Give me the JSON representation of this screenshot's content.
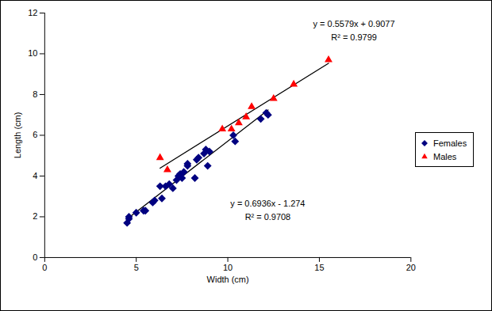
{
  "chart_data": {
    "type": "scatter",
    "xlabel": "Width (cm)",
    "ylabel": "Length (cm)",
    "xlim": [
      0,
      20
    ],
    "xticks": [
      0,
      5,
      10,
      15,
      20
    ],
    "ylim": [
      0,
      12
    ],
    "yticks": [
      0,
      2,
      4,
      6,
      8,
      10,
      12
    ],
    "grid": false,
    "legend": "right",
    "series": [
      {
        "name": "Females",
        "color": "#000080",
        "marker": "diamond",
        "line_style": "solid",
        "x": [
          4.5,
          4.6,
          4.6,
          5.0,
          5.4,
          5.5,
          5.9,
          6.0,
          6.3,
          6.4,
          6.6,
          6.8,
          7.0,
          7.2,
          7.3,
          7.4,
          7.5,
          7.6,
          7.8,
          7.8,
          8.2,
          8.3,
          8.4,
          8.7,
          8.8,
          8.9,
          9.0,
          10.3,
          10.4,
          11.8,
          12.1,
          12.2
        ],
        "values": [
          1.7,
          1.9,
          2.0,
          2.2,
          2.3,
          2.3,
          2.7,
          2.8,
          3.5,
          2.9,
          3.5,
          3.6,
          3.4,
          3.8,
          4.0,
          4.1,
          3.9,
          4.2,
          4.5,
          4.6,
          3.9,
          4.8,
          4.9,
          5.1,
          5.3,
          4.5,
          5.2,
          6.0,
          5.7,
          6.8,
          7.1,
          7.0
        ],
        "annotations": [
          "y = 0.6936x - 1.274",
          "R² = 0.9708"
        ]
      },
      {
        "name": "Males",
        "color": "#ff0000",
        "marker": "triangle",
        "line_style": "solid",
        "x": [
          6.3,
          6.7,
          9.7,
          10.2,
          10.6,
          11.0,
          11.3,
          12.5,
          13.6,
          15.5
        ],
        "values": [
          4.9,
          4.3,
          6.3,
          6.3,
          6.6,
          6.9,
          7.4,
          7.8,
          8.5,
          9.7
        ],
        "annotations": [
          "y = 0.5579x + 0.9077",
          "R² = 0.9799"
        ]
      }
    ]
  }
}
